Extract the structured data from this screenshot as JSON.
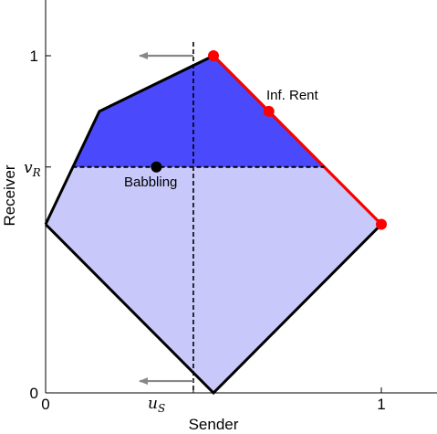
{
  "figure": {
    "xlabel": "Sender",
    "ylabel": "Receiver",
    "x_ticks": [
      {
        "value": "0",
        "pos": 0
      },
      {
        "value": "1",
        "pos": 1
      }
    ],
    "y_ticks": [
      {
        "value": "0",
        "pos": 0
      },
      {
        "value": "1",
        "pos": 1
      }
    ],
    "u_s_label": {
      "main": "u",
      "sub": "S"
    },
    "v_r_label": {
      "main": "v",
      "sub": "R"
    },
    "annotations": {
      "babbling": "Babbling",
      "inf_rent": "Inf. Rent"
    },
    "colors": {
      "light_region": "#c8c8fb",
      "dark_region": "#4a4afc",
      "frontier": "#ff0000",
      "outline": "#000000",
      "arrows": "#888888"
    }
  },
  "chart_data": {
    "type": "diagram",
    "xlim": [
      0,
      1.15
    ],
    "ylim": [
      0,
      1.15
    ],
    "xlabel": "Sender",
    "ylabel": "Receiver",
    "u_s": 0.44,
    "v_r": 0.67,
    "polygon": [
      [
        0,
        0.5
      ],
      [
        0.16,
        0.835
      ],
      [
        0.5,
        1.0
      ],
      [
        1.0,
        0.5
      ],
      [
        0.5,
        0.0
      ],
      [
        0,
        0.5
      ]
    ],
    "upper_region": [
      [
        0.08,
        0.67
      ],
      [
        0.16,
        0.835
      ],
      [
        0.5,
        1.0
      ],
      [
        0.83,
        0.67
      ]
    ],
    "pareto_frontier": [
      [
        0.5,
        1.0
      ],
      [
        1.0,
        0.5
      ]
    ],
    "red_points": [
      [
        0.5,
        1.0
      ],
      [
        0.665,
        0.835
      ],
      [
        1.0,
        0.5
      ]
    ],
    "babbling_point": [
      0.33,
      0.67
    ],
    "arrows": [
      {
        "from": [
          0.44,
          1.0
        ],
        "to": [
          0.28,
          1.0
        ]
      },
      {
        "from": [
          0.44,
          0.035
        ],
        "to": [
          0.28,
          0.035
        ]
      }
    ],
    "annotations": [
      {
        "text": "Babbling",
        "at": [
          0.33,
          0.67
        ]
      },
      {
        "text": "Inf. Rent",
        "at": [
          0.665,
          0.835
        ]
      }
    ]
  }
}
